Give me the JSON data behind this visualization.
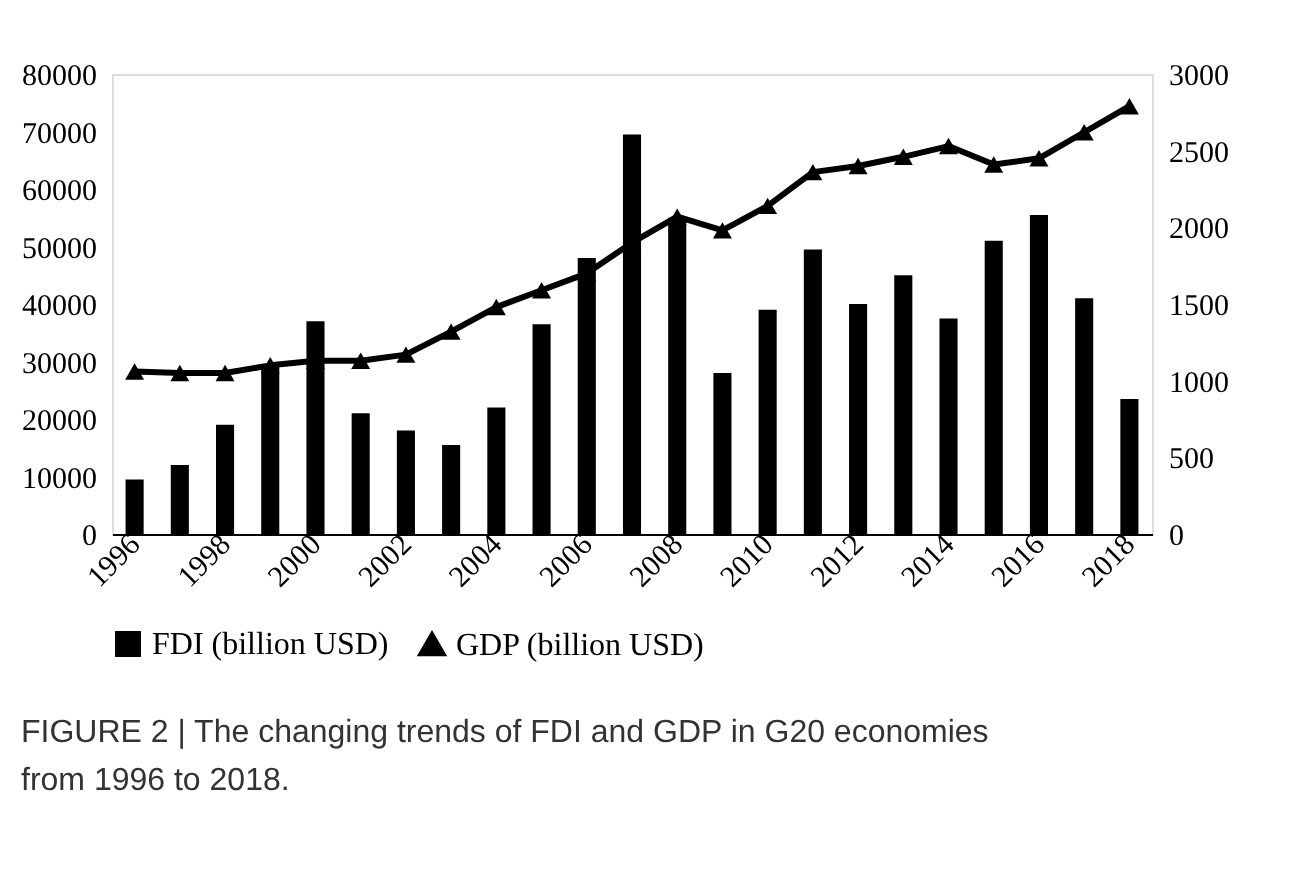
{
  "chart_data": {
    "type": "bar",
    "categories": [
      "1996",
      null,
      "1998",
      null,
      "2000",
      null,
      "2002",
      null,
      "2004",
      null,
      "2006",
      null,
      "2008",
      null,
      "2010",
      null,
      "2012",
      null,
      "2014",
      null,
      "2016",
      null,
      "2018"
    ],
    "series": [
      {
        "name": "FDI (billion USD)",
        "color": "#000000",
        "values": [
          9500,
          12000,
          19000,
          29500,
          37000,
          21000,
          18000,
          15500,
          22000,
          36500,
          48000,
          69500,
          55000,
          28000,
          39000,
          49500,
          40000,
          45000,
          37500,
          51000,
          55500,
          41000,
          23500
        ]
      },
      {
        "name": "GDP (billion USD)",
        "type": "line",
        "axis": "y2",
        "color": "#000000",
        "marker": "triangle",
        "values": [
          1060,
          1050,
          1050,
          1100,
          1130,
          1130,
          1170,
          1320,
          1480,
          1590,
          1700,
          1900,
          2070,
          1980,
          2140,
          2360,
          2400,
          2460,
          2530,
          2410,
          2450,
          2620,
          2790
        ]
      }
    ],
    "ylim": [
      0,
      80000
    ],
    "yticks": [
      0,
      10000,
      20000,
      30000,
      40000,
      50000,
      60000,
      70000,
      80000
    ],
    "y2lim": [
      0,
      3000
    ],
    "y2ticks": [
      0,
      500,
      1000,
      1500,
      2000,
      2500,
      3000
    ],
    "grid": false,
    "legend": "bottom",
    "annotations": [
      "FIGURE 2 | The changing trends of FDI and GDP in G20 economies from 1996 to 2018."
    ]
  }
}
